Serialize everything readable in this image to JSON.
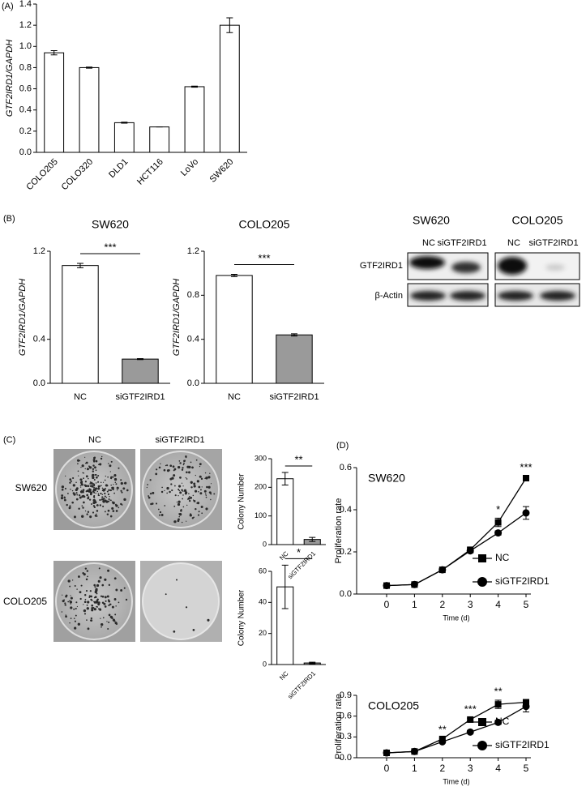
{
  "panels": [
    "(A)",
    "(B)",
    "(C)",
    "(D)"
  ],
  "blot": {
    "cell_lines": [
      "SW620",
      "COLO205"
    ],
    "lanes": [
      "NC",
      "siGTF2IRD1",
      "NC",
      "siGTF2IRD1"
    ],
    "rows": [
      "GTF2IRD1",
      "β-Actin"
    ]
  },
  "colony": {
    "columns": [
      "NC",
      "siGTF2IRD1"
    ],
    "rows": [
      "SW620",
      "COLO205"
    ]
  },
  "chart_data": [
    {
      "type": "bar",
      "ylabel": "GTF2IRD1/GAPDH",
      "categories": [
        "COLO205",
        "COLO320",
        "DLD1",
        "HCT116",
        "LoVo",
        "SW620"
      ],
      "values": [
        0.94,
        0.8,
        0.28,
        0.24,
        0.62,
        1.2
      ],
      "errors": [
        0.02,
        0.005,
        0.005,
        0,
        0.005,
        0.07
      ],
      "colors": [
        "#ffffff",
        "#ffffff",
        "#ffffff",
        "#ffffff",
        "#ffffff",
        "#ffffff"
      ],
      "ylim": [
        0,
        1.4
      ],
      "yticks": [
        {
          "value": 0,
          "label": "0.0"
        },
        0.2,
        0.4,
        0.6,
        0.8,
        {
          "value": 1,
          "label": "1.0"
        },
        1.2,
        1.4
      ]
    },
    {
      "type": "bar",
      "title": "SW620",
      "ylabel": "GTF2IRD1/GAPDH",
      "categories": [
        "NC",
        "siGTF2IRD1"
      ],
      "values": [
        1.07,
        0.22
      ],
      "errors": [
        0.02,
        0.005
      ],
      "colors": [
        "#ffffff",
        "#9a9a9a"
      ],
      "ylim": [
        0,
        1.2
      ],
      "yticks": [
        {
          "value": 0,
          "label": "0.0"
        },
        0.4,
        1.2
      ],
      "annotation": "***"
    },
    {
      "type": "bar",
      "title": "COLO205",
      "ylabel": "GTF2IRD1/GAPDH",
      "categories": [
        "NC",
        "siGTF2IRD1"
      ],
      "values": [
        0.98,
        0.44
      ],
      "errors": [
        0.01,
        0.01
      ],
      "colors": [
        "#ffffff",
        "#9a9a9a"
      ],
      "ylim": [
        0,
        1.2
      ],
      "yticks": [
        {
          "value": 0,
          "label": "0.0"
        },
        0.4,
        0.8,
        1.2
      ],
      "annotation": "***"
    },
    {
      "type": "bar",
      "ylabel": "Colony Number",
      "categories": [
        "NC",
        "siGTF2IRD1"
      ],
      "values": [
        230,
        18
      ],
      "errors": [
        22,
        7
      ],
      "colors": [
        "#ffffff",
        "#9a9a9a"
      ],
      "ylim": [
        0,
        300
      ],
      "yticks": [
        0,
        100,
        200,
        300
      ],
      "annotation": "**"
    },
    {
      "type": "bar",
      "ylabel": "Colony Number",
      "categories": [
        "NC",
        "siGTF2IRD1"
      ],
      "values": [
        50,
        1
      ],
      "errors": [
        14,
        0.5
      ],
      "colors": [
        "#ffffff",
        "#9a9a9a"
      ],
      "ylim": [
        0,
        60
      ],
      "yticks": [
        0,
        20,
        40,
        60
      ],
      "annotation": "*"
    },
    {
      "type": "line",
      "title": "SW620",
      "xlabel": "Time (d)",
      "ylabel": "Proliferation rate",
      "x": [
        0,
        1,
        2,
        3,
        4,
        5
      ],
      "xlim": [
        0,
        5
      ],
      "xticks": [
        0,
        1,
        2,
        3,
        4,
        5
      ],
      "ylim": [
        0,
        0.6
      ],
      "yticks": [
        {
          "value": 0,
          "label": "0.0"
        },
        0.2,
        0.4,
        0.6
      ],
      "series": [
        {
          "name": "NC",
          "color": "#000000",
          "marker": "square",
          "values": [
            0.04,
            0.045,
            0.115,
            0.21,
            0.34,
            0.55
          ],
          "errors": [
            0.005,
            0.005,
            0.005,
            0.01,
            0.02,
            0.01
          ]
        },
        {
          "name": "siGTF2IRD1",
          "color": "#000000",
          "marker": "circle",
          "values": [
            0.04,
            0.045,
            0.115,
            0.205,
            0.29,
            0.385
          ],
          "errors": [
            0.005,
            0.005,
            0.005,
            0.01,
            0.01,
            0.03
          ]
        }
      ],
      "annotations": [
        {
          "x": 4,
          "text": "*"
        },
        {
          "x": 5,
          "text": "***"
        }
      ]
    },
    {
      "type": "line",
      "title": "COLO205",
      "xlabel": "Time (d)",
      "ylabel": "Proliferation rate",
      "x": [
        0,
        1,
        2,
        3,
        4,
        5
      ],
      "xlim": [
        0,
        5
      ],
      "xticks": [
        0,
        1,
        2,
        3,
        4,
        5
      ],
      "ylim": [
        0,
        0.9
      ],
      "yticks": [
        {
          "value": 0,
          "label": "0.0"
        },
        0.3,
        0.6,
        0.9
      ],
      "series": [
        {
          "name": "NC",
          "color": "#000000",
          "marker": "square",
          "values": [
            0.07,
            0.09,
            0.27,
            0.55,
            0.77,
            0.8
          ],
          "errors": [
            0.005,
            0.005,
            0.01,
            0.02,
            0.06,
            0.03
          ]
        },
        {
          "name": "siGTF2IRD1",
          "color": "#000000",
          "marker": "circle",
          "values": [
            0.07,
            0.09,
            0.23,
            0.37,
            0.51,
            0.74
          ],
          "errors": [
            0.005,
            0.005,
            0.01,
            0.02,
            0.03,
            0.08
          ]
        }
      ],
      "annotations": [
        {
          "x": 2,
          "text": "**"
        },
        {
          "x": 3,
          "text": "***"
        },
        {
          "x": 4,
          "text": "**"
        }
      ]
    }
  ]
}
